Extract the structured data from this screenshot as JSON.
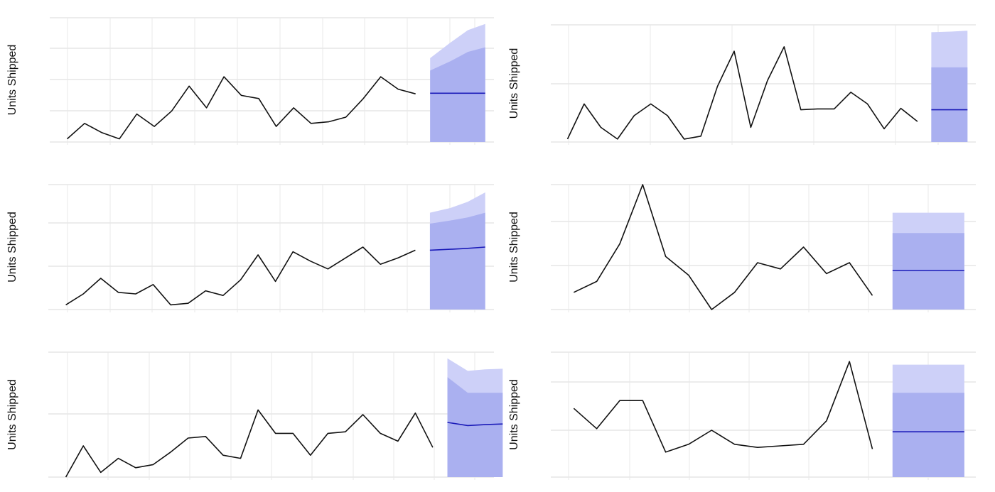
{
  "colors": {
    "history_line": "#111111",
    "forecast_line": "#1a1ab8",
    "interval_80": "#aab0f0",
    "interval_95": "#cdd0f8",
    "grid_major": "#e6e6e6",
    "grid_minor": "#f2f2f2"
  },
  "chart_data": [
    {
      "type": "line",
      "ylabel": "Units Shipped",
      "grid": true,
      "xlim": [
        0,
        25.5
      ],
      "ylim": [
        -5,
        35
      ],
      "history": [
        {
          "x": 1,
          "y": -4
        },
        {
          "x": 2,
          "y": 1
        },
        {
          "x": 3,
          "y": -2
        },
        {
          "x": 4,
          "y": -4
        },
        {
          "x": 5,
          "y": 4
        },
        {
          "x": 6,
          "y": 0
        },
        {
          "x": 7,
          "y": 5
        },
        {
          "x": 8,
          "y": 13
        },
        {
          "x": 9,
          "y": 6
        },
        {
          "x": 10,
          "y": 16
        },
        {
          "x": 11,
          "y": 10
        },
        {
          "x": 12,
          "y": 9
        },
        {
          "x": 13,
          "y": 0
        },
        {
          "x": 14,
          "y": 6
        },
        {
          "x": 15,
          "y": 1
        },
        {
          "x": 16,
          "y": 1.5
        },
        {
          "x": 17,
          "y": 3
        },
        {
          "x": 18,
          "y": 9
        },
        {
          "x": 19,
          "y": 16
        },
        {
          "x": 20,
          "y": 12
        },
        {
          "x": 21,
          "y": 10.5
        }
      ],
      "forecast": [
        {
          "x": 22,
          "y": 10.7,
          "lo80": -5,
          "hi80": 18,
          "lo95": -5,
          "hi95": 22
        },
        {
          "x": 23,
          "y": 10.7,
          "lo80": -5,
          "hi80": 21,
          "lo95": -5,
          "hi95": 27
        },
        {
          "x": 24,
          "y": 10.7,
          "lo80": -5,
          "hi80": 24,
          "lo95": -5,
          "hi95": 31
        },
        {
          "x": 25,
          "y": 10.7,
          "lo80": -5,
          "hi80": 25.5,
          "lo95": -5,
          "hi95": 33
        }
      ]
    },
    {
      "type": "line",
      "ylabel": "Units Shipped",
      "grid": true,
      "xlim": [
        0,
        25.5
      ],
      "ylim": [
        -5,
        35
      ],
      "history": [
        {
          "x": 1,
          "y": -4
        },
        {
          "x": 2,
          "y": 8
        },
        {
          "x": 3,
          "y": 0
        },
        {
          "x": 4,
          "y": -4
        },
        {
          "x": 5,
          "y": 4
        },
        {
          "x": 6,
          "y": 8
        },
        {
          "x": 7,
          "y": 4
        },
        {
          "x": 8,
          "y": -4
        },
        {
          "x": 9,
          "y": -3
        },
        {
          "x": 10,
          "y": 14
        },
        {
          "x": 11,
          "y": 26
        },
        {
          "x": 12,
          "y": 0
        },
        {
          "x": 13,
          "y": 16
        },
        {
          "x": 14,
          "y": 27.5
        },
        {
          "x": 15,
          "y": 6
        },
        {
          "x": 16,
          "y": 6.3
        },
        {
          "x": 17,
          "y": 6.3
        },
        {
          "x": 18,
          "y": 12
        },
        {
          "x": 19,
          "y": 8
        },
        {
          "x": 20,
          "y": -0.5
        },
        {
          "x": 21,
          "y": 6.5
        },
        {
          "x": 22,
          "y": 2
        }
      ],
      "forecast": [
        {
          "x": 23,
          "y": 6,
          "lo80": -5,
          "hi80": 20.5,
          "lo95": -5,
          "hi95": 32.5
        },
        {
          "x": 24,
          "y": 6,
          "lo80": -5,
          "hi80": 20.5,
          "lo95": -5,
          "hi95": 32.7
        },
        {
          "x": 25,
          "y": 6,
          "lo80": -5,
          "hi80": 20.5,
          "lo95": -5,
          "hi95": 33
        }
      ]
    },
    {
      "type": "line",
      "ylabel": "Units Shipped",
      "grid": true,
      "xlim": [
        0,
        25.5
      ],
      "ylim": [
        -5,
        35
      ],
      "history": [
        {
          "x": 1,
          "y": -3.5
        },
        {
          "x": 2,
          "y": 0
        },
        {
          "x": 3,
          "y": 5
        },
        {
          "x": 4,
          "y": 0.5
        },
        {
          "x": 5,
          "y": 0
        },
        {
          "x": 6,
          "y": 3
        },
        {
          "x": 7,
          "y": -3.5
        },
        {
          "x": 8,
          "y": -3
        },
        {
          "x": 9,
          "y": 1
        },
        {
          "x": 10,
          "y": -0.5
        },
        {
          "x": 11,
          "y": 4.5
        },
        {
          "x": 12,
          "y": 12.5
        },
        {
          "x": 13,
          "y": 4
        },
        {
          "x": 14,
          "y": 13.5
        },
        {
          "x": 15,
          "y": 10.5
        },
        {
          "x": 16,
          "y": 8
        },
        {
          "x": 17,
          "y": 11.5
        },
        {
          "x": 18,
          "y": 15
        },
        {
          "x": 19,
          "y": 9.5
        },
        {
          "x": 20,
          "y": 11.5
        },
        {
          "x": 21,
          "y": 14
        }
      ],
      "forecast": [
        {
          "x": 22,
          "y": 14,
          "lo80": -5,
          "hi80": 22.5,
          "lo95": -5,
          "hi95": 26
        },
        {
          "x": 23,
          "y": 14.3,
          "lo80": -5,
          "hi80": 23.5,
          "lo95": -5,
          "hi95": 27.5
        },
        {
          "x": 24,
          "y": 14.6,
          "lo80": -5,
          "hi80": 24.5,
          "lo95": -5,
          "hi95": 29.5
        },
        {
          "x": 25,
          "y": 15,
          "lo80": -5,
          "hi80": 26,
          "lo95": -5,
          "hi95": 32.5
        }
      ]
    },
    {
      "type": "line",
      "ylabel": "Units Shipped",
      "grid": true,
      "xlim": [
        0,
        18.5
      ],
      "ylim": [
        -5,
        35
      ],
      "history": [
        {
          "x": 1,
          "y": 0.5
        },
        {
          "x": 2,
          "y": 4
        },
        {
          "x": 3,
          "y": 16
        },
        {
          "x": 4,
          "y": 35
        },
        {
          "x": 5,
          "y": 12
        },
        {
          "x": 6,
          "y": 6
        },
        {
          "x": 7,
          "y": -5
        },
        {
          "x": 8,
          "y": 0.5
        },
        {
          "x": 9,
          "y": 10
        },
        {
          "x": 10,
          "y": 8
        },
        {
          "x": 11,
          "y": 15
        },
        {
          "x": 12,
          "y": 6.5
        },
        {
          "x": 13,
          "y": 10
        },
        {
          "x": 14,
          "y": -0.5
        }
      ],
      "forecast": [
        {
          "x": 15,
          "y": 7.5,
          "lo80": -5,
          "hi80": 19.5,
          "lo95": -5,
          "hi95": 26
        },
        {
          "x": 16.5,
          "y": 7.5,
          "lo80": -5,
          "hi80": 19.5,
          "lo95": -5,
          "hi95": 26
        },
        {
          "x": 18,
          "y": 7.5,
          "lo80": -5,
          "hi80": 19.5,
          "lo95": -5,
          "hi95": 26
        }
      ]
    },
    {
      "type": "line",
      "ylabel": "Units Shipped",
      "grid": true,
      "xlim": [
        0,
        25.5
      ],
      "ylim": [
        -5,
        35
      ],
      "history": [
        {
          "x": 1,
          "y": -5
        },
        {
          "x": 2,
          "y": 5
        },
        {
          "x": 3,
          "y": -3.5
        },
        {
          "x": 4,
          "y": 1
        },
        {
          "x": 5,
          "y": -2
        },
        {
          "x": 6,
          "y": -1
        },
        {
          "x": 7,
          "y": 3
        },
        {
          "x": 8,
          "y": 7.5
        },
        {
          "x": 9,
          "y": 8
        },
        {
          "x": 10,
          "y": 2
        },
        {
          "x": 11,
          "y": 1
        },
        {
          "x": 12,
          "y": 16.5
        },
        {
          "x": 13,
          "y": 9
        },
        {
          "x": 14,
          "y": 9
        },
        {
          "x": 15,
          "y": 2
        },
        {
          "x": 16,
          "y": 9
        },
        {
          "x": 17,
          "y": 9.5
        },
        {
          "x": 18,
          "y": 15
        },
        {
          "x": 19,
          "y": 9
        },
        {
          "x": 20,
          "y": 6.5
        },
        {
          "x": 21,
          "y": 15.5
        },
        {
          "x": 22,
          "y": 4.5
        }
      ],
      "forecast": [
        {
          "x": 23,
          "y": 12.5,
          "lo80": -5,
          "hi80": 27,
          "lo95": -5,
          "hi95": 33
        },
        {
          "x": 24,
          "y": 11.5,
          "lo80": -5,
          "hi80": 22,
          "lo95": -5,
          "hi95": 29
        },
        {
          "x": 25,
          "y": 11.8,
          "lo80": -5,
          "hi80": 22,
          "lo95": -5,
          "hi95": 29.5
        },
        {
          "x": 26,
          "y": 12,
          "lo80": -5,
          "hi80": 22,
          "lo95": -5,
          "hi95": 29.7
        }
      ]
    },
    {
      "type": "line",
      "ylabel": "Units Shipped",
      "grid": true,
      "xlim": [
        0,
        18.5
      ],
      "ylim": [
        -5,
        35
      ],
      "history": [
        {
          "x": 1,
          "y": 17
        },
        {
          "x": 2,
          "y": 10.5
        },
        {
          "x": 3,
          "y": 19.5
        },
        {
          "x": 4,
          "y": 19.5
        },
        {
          "x": 5,
          "y": 3
        },
        {
          "x": 6,
          "y": 5.5
        },
        {
          "x": 7,
          "y": 10
        },
        {
          "x": 8,
          "y": 5.5
        },
        {
          "x": 9,
          "y": 4.5
        },
        {
          "x": 10,
          "y": 5
        },
        {
          "x": 11,
          "y": 5.5
        },
        {
          "x": 12,
          "y": 13
        },
        {
          "x": 13,
          "y": 32
        },
        {
          "x": 14,
          "y": 4
        }
      ],
      "forecast": [
        {
          "x": 15,
          "y": 9.5,
          "lo80": -5,
          "hi80": 22,
          "lo95": -5,
          "hi95": 31
        },
        {
          "x": 16.5,
          "y": 9.5,
          "lo80": -5,
          "hi80": 22,
          "lo95": -5,
          "hi95": 31
        },
        {
          "x": 18,
          "y": 9.5,
          "lo80": -5,
          "hi80": 22,
          "lo95": -5,
          "hi95": 31
        }
      ]
    }
  ]
}
